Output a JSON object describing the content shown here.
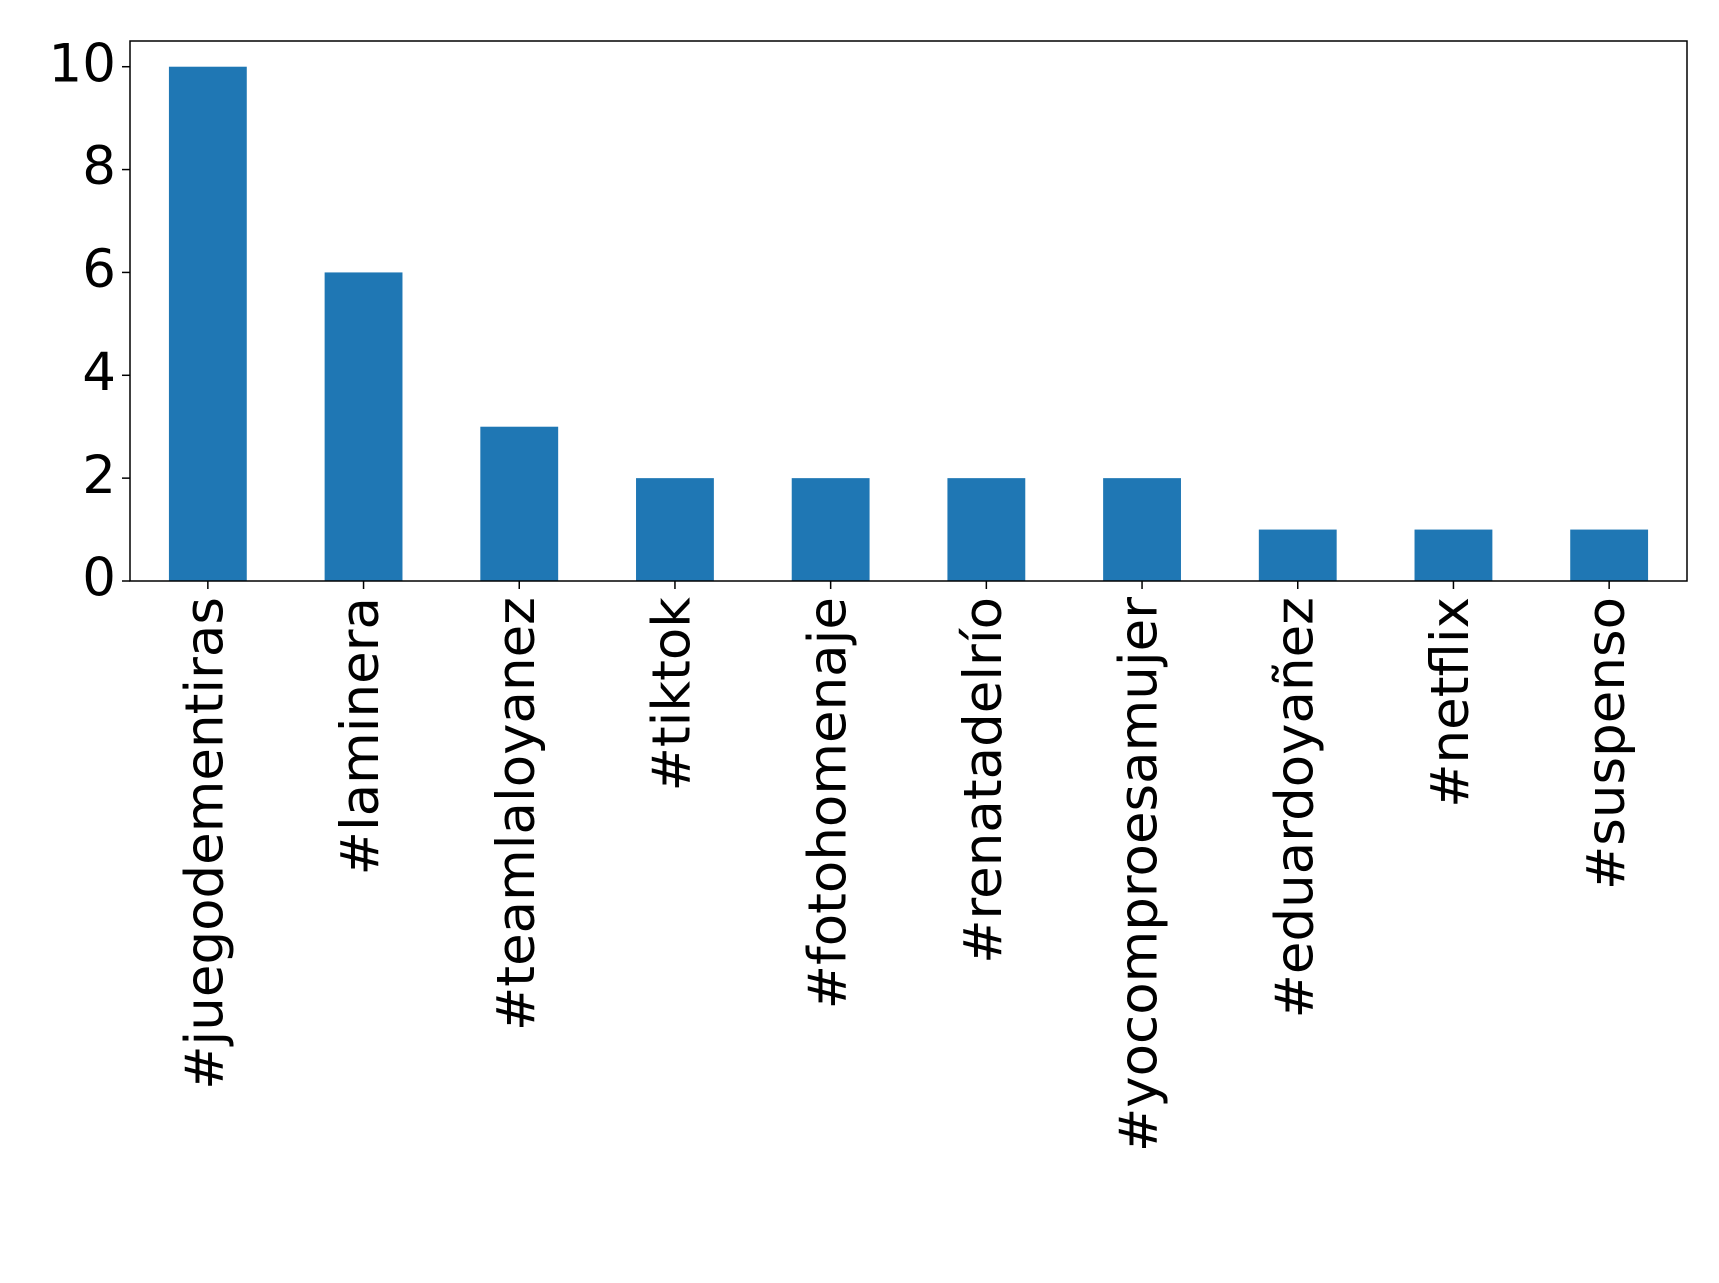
{
  "chart_data": {
    "type": "bar",
    "categories": [
      "#juegodementiras",
      "#laminera",
      "#teamlaloyanez",
      "#tiktok",
      "#fotohomenaje",
      "#renatadelrío",
      "#yocomproesamujer",
      "#eduardoyañez",
      "#netflix",
      "#suspenso"
    ],
    "values": [
      10,
      6,
      3,
      2,
      2,
      2,
      2,
      1,
      1,
      1
    ],
    "color": "#1f77b4",
    "ylim": [
      0,
      10.5
    ],
    "yticks": [
      0,
      2,
      4,
      6,
      8,
      10
    ],
    "grid": false
  }
}
